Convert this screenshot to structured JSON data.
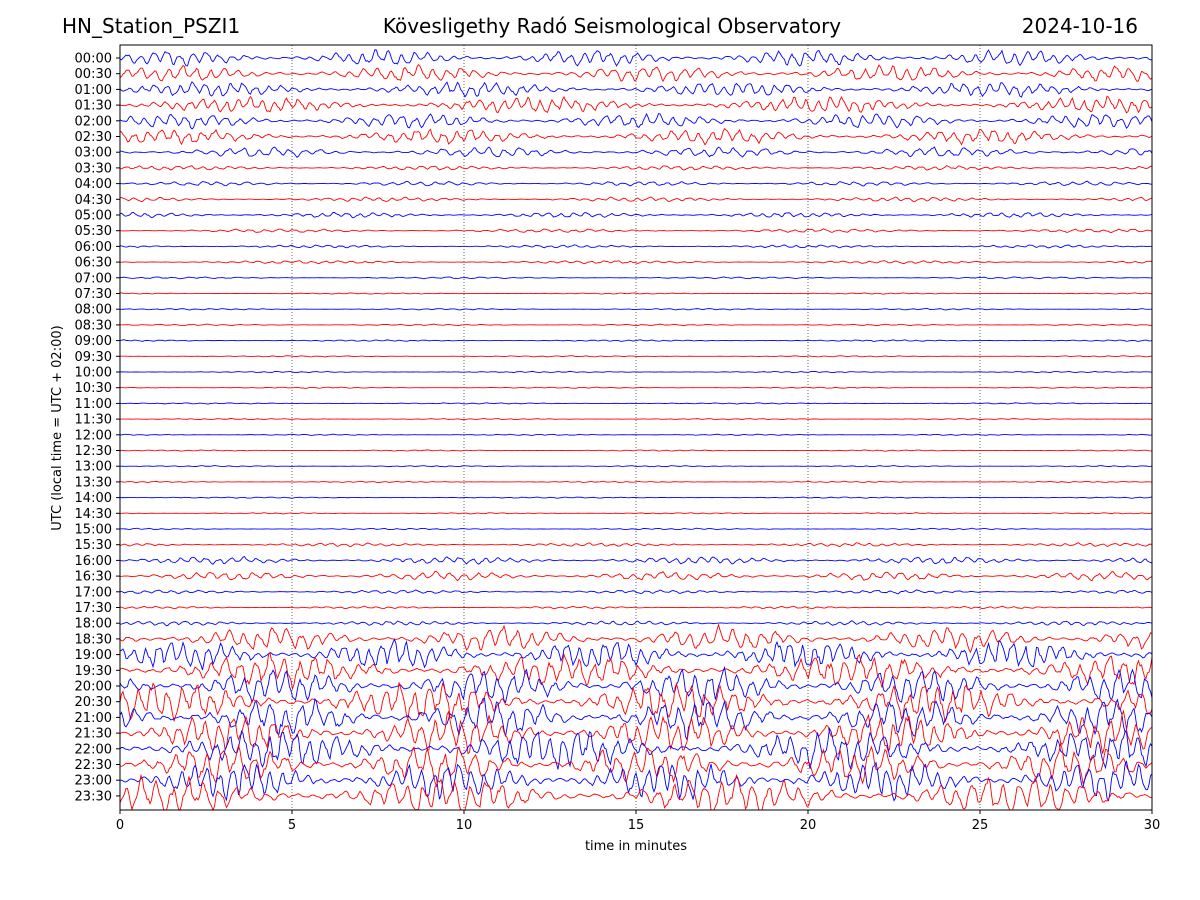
{
  "header": {
    "station": "HN_Station_PSZI1",
    "observatory": "Kövesligethy Radó Seismological Observatory",
    "date": "2024-10-16"
  },
  "chart_data": {
    "type": "line",
    "title": "Kövesligethy Radó Seismological Observatory",
    "xlabel": "time in minutes",
    "ylabel": "UTC (local time = UTC + 02:00)",
    "xlim": [
      0,
      30
    ],
    "x_ticks": [
      "0",
      "5",
      "10",
      "15",
      "20",
      "25",
      "30"
    ],
    "grid": "vertical dotted lines at 5-minute intervals",
    "trace_colors": [
      "#0000ff",
      "#ff0000"
    ],
    "rows": [
      {
        "label": "00:00",
        "level": 0.55
      },
      {
        "label": "00:30",
        "level": 0.55
      },
      {
        "label": "01:00",
        "level": 0.5
      },
      {
        "label": "01:30",
        "level": 0.55
      },
      {
        "label": "02:00",
        "level": 0.5
      },
      {
        "label": "02:30",
        "level": 0.5
      },
      {
        "label": "03:00",
        "level": 0.35
      },
      {
        "label": "03:30",
        "level": 0.15
      },
      {
        "label": "04:00",
        "level": 0.15
      },
      {
        "label": "04:30",
        "level": 0.15
      },
      {
        "label": "05:00",
        "level": 0.18
      },
      {
        "label": "05:30",
        "level": 0.12
      },
      {
        "label": "06:00",
        "level": 0.1
      },
      {
        "label": "06:30",
        "level": 0.1
      },
      {
        "label": "07:00",
        "level": 0.06
      },
      {
        "label": "07:30",
        "level": 0.04
      },
      {
        "label": "08:00",
        "level": 0.05
      },
      {
        "label": "08:30",
        "level": 0.05
      },
      {
        "label": "09:00",
        "level": 0.05
      },
      {
        "label": "09:30",
        "level": 0.04
      },
      {
        "label": "10:00",
        "level": 0.04
      },
      {
        "label": "10:30",
        "level": 0.04
      },
      {
        "label": "11:00",
        "level": 0.04
      },
      {
        "label": "11:30",
        "level": 0.04
      },
      {
        "label": "12:00",
        "level": 0.04
      },
      {
        "label": "12:30",
        "level": 0.04
      },
      {
        "label": "13:00",
        "level": 0.04
      },
      {
        "label": "13:30",
        "level": 0.04
      },
      {
        "label": "14:00",
        "level": 0.04
      },
      {
        "label": "14:30",
        "level": 0.04
      },
      {
        "label": "15:00",
        "level": 0.05
      },
      {
        "label": "15:30",
        "level": 0.12
      },
      {
        "label": "16:00",
        "level": 0.25
      },
      {
        "label": "16:30",
        "level": 0.3
      },
      {
        "label": "17:00",
        "level": 0.12
      },
      {
        "label": "17:30",
        "level": 0.08
      },
      {
        "label": "18:00",
        "level": 0.15
      },
      {
        "label": "18:30",
        "level": 0.8
      },
      {
        "label": "19:00",
        "level": 1.0
      },
      {
        "label": "19:30",
        "level": 1.1
      },
      {
        "label": "20:00",
        "level": 1.2
      },
      {
        "label": "20:30",
        "level": 1.3
      },
      {
        "label": "21:00",
        "level": 1.3
      },
      {
        "label": "21:30",
        "level": 1.3
      },
      {
        "label": "22:00",
        "level": 1.3
      },
      {
        "label": "22:30",
        "level": 1.3
      },
      {
        "label": "23:00",
        "level": 1.3
      },
      {
        "label": "23:30",
        "level": 1.3
      }
    ]
  }
}
